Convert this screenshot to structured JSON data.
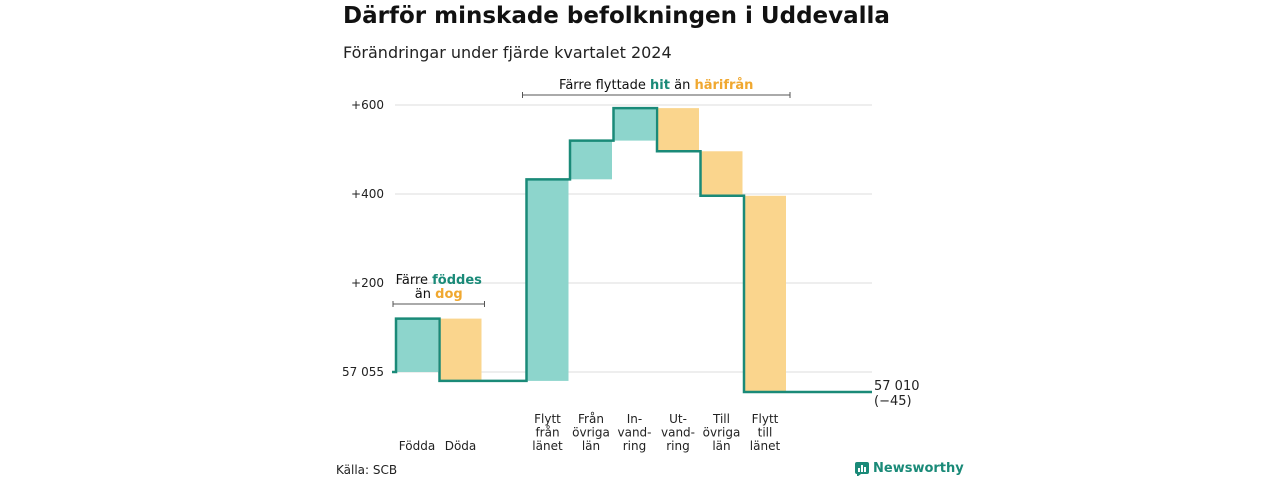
{
  "title": "Därför minskade befolkningen i Uddevalla",
  "subtitle": "Förändringar under fjärde kvartalet 2024",
  "source": "Källa: SCB",
  "brand": "Newsworthy",
  "colors": {
    "increase": "#8dd5cc",
    "decrease": "#fad58d",
    "line": "#1a8a78",
    "accent_increase": "#1a8a78",
    "accent_decrease": "#f0a830",
    "grid": "#dddddd"
  },
  "chart_data": {
    "type": "waterfall",
    "base_value": 57055,
    "end_value": 57010,
    "ylim": [
      -45,
      600
    ],
    "y_ticks": [
      {
        "value": 0,
        "label": "57 055"
      },
      {
        "value": 200,
        "label": "+200"
      },
      {
        "value": 400,
        "label": "+400"
      },
      {
        "value": 600,
        "label": "+600"
      }
    ],
    "steps": [
      {
        "label_lines": [
          "Födda"
        ],
        "change": 120,
        "kind": "increase"
      },
      {
        "label_lines": [
          "Döda"
        ],
        "change": -140,
        "kind": "decrease"
      },
      {
        "label_lines": [
          "Flytt",
          "från",
          "länet"
        ],
        "change": 453,
        "kind": "increase"
      },
      {
        "label_lines": [
          "Från",
          "övriga",
          "län"
        ],
        "change": 87,
        "kind": "increase"
      },
      {
        "label_lines": [
          "In-",
          "vand-",
          "ring"
        ],
        "change": 73,
        "kind": "increase"
      },
      {
        "label_lines": [
          "Ut-",
          "vand-",
          "ring"
        ],
        "change": -97,
        "kind": "decrease"
      },
      {
        "label_lines": [
          "Till",
          "övriga",
          "län"
        ],
        "change": -100,
        "kind": "decrease"
      },
      {
        "label_lines": [
          "Flytt",
          "till",
          "länet"
        ],
        "change": -441,
        "kind": "decrease"
      }
    ],
    "end_label_lines": [
      "57 010",
      "(−45)"
    ],
    "annotations": [
      {
        "parts": [
          {
            "text": "Färre ",
            "style": "plain"
          },
          {
            "text": "föddes",
            "style": "increase"
          }
        ],
        "parts2": [
          {
            "text": "än ",
            "style": "plain"
          },
          {
            "text": "dog",
            "style": "decrease"
          }
        ],
        "from_step": 0,
        "to_step": 1
      },
      {
        "parts": [
          {
            "text": "Färre flyttade ",
            "style": "plain"
          },
          {
            "text": "hit",
            "style": "increase"
          },
          {
            "text": " än ",
            "style": "plain"
          },
          {
            "text": "härifrån",
            "style": "decrease"
          }
        ],
        "from_step": 2,
        "to_step": 7
      }
    ]
  }
}
